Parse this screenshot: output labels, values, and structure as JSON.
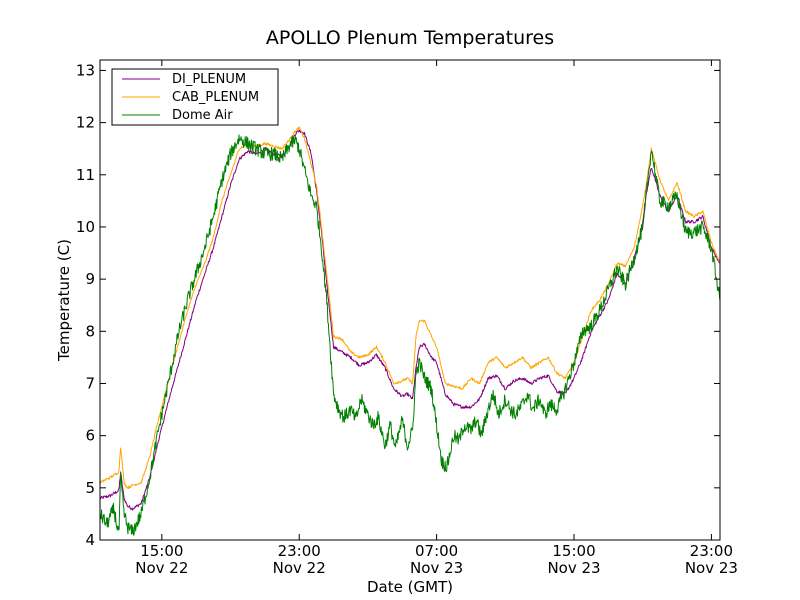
{
  "chart_data": {
    "type": "line",
    "title": "APOLLO Plenum Temperatures",
    "xlabel": "Date (GMT)",
    "ylabel": "Temperature (C)",
    "x_unit": "hours since Nov 22 00:00 GMT",
    "xlim": [
      11.4,
      47.5
    ],
    "ylim": [
      4,
      13.2
    ],
    "yticks": [
      4,
      5,
      6,
      7,
      8,
      9,
      10,
      11,
      12,
      13
    ],
    "xticks": [
      {
        "x": 15,
        "time": "15:00",
        "date": "Nov 22"
      },
      {
        "x": 23,
        "time": "23:00",
        "date": "Nov 22"
      },
      {
        "x": 31,
        "time": "07:00",
        "date": "Nov 23"
      },
      {
        "x": 39,
        "time": "15:00",
        "date": "Nov 23"
      },
      {
        "x": 47,
        "time": "23:00",
        "date": "Nov 23"
      }
    ],
    "legend_position": "top-left",
    "series": [
      {
        "name": "DI_PLENUM",
        "color": "#800080",
        "x": [
          11.4,
          12.0,
          12.5,
          12.6,
          12.8,
          13.0,
          13.3,
          13.8,
          14.3,
          14.8,
          15.5,
          16.0,
          16.5,
          17.0,
          17.5,
          18.0,
          18.5,
          19.0,
          19.5,
          20.0,
          20.5,
          21.0,
          21.5,
          22.0,
          22.5,
          22.8,
          23.0,
          23.3,
          23.7,
          24.0,
          24.3,
          24.6,
          25.0,
          25.5,
          26.0,
          26.5,
          27.0,
          27.5,
          28.0,
          28.5,
          29.0,
          29.3,
          29.6,
          29.8,
          30.0,
          30.3,
          30.7,
          31.0,
          31.5,
          32.0,
          32.5,
          33.0,
          33.5,
          34.0,
          34.5,
          35.0,
          35.5,
          36.0,
          36.5,
          37.0,
          37.5,
          38.0,
          38.5,
          39.0,
          39.5,
          40.0,
          40.5,
          41.0,
          41.5,
          42.0,
          42.5,
          43.0,
          43.2,
          43.5,
          44.0,
          44.5,
          45.0,
          45.5,
          46.0,
          46.5,
          47.0,
          47.5
        ],
        "values": [
          4.8,
          4.85,
          4.95,
          5.3,
          4.8,
          4.65,
          4.6,
          4.7,
          5.2,
          5.9,
          6.8,
          7.4,
          8.0,
          8.6,
          9.1,
          9.6,
          10.2,
          10.8,
          11.3,
          11.45,
          11.4,
          11.5,
          11.4,
          11.35,
          11.6,
          11.8,
          11.85,
          11.8,
          11.4,
          10.7,
          9.9,
          8.9,
          7.7,
          7.6,
          7.5,
          7.35,
          7.4,
          7.55,
          7.3,
          6.9,
          6.75,
          6.8,
          6.7,
          7.3,
          7.7,
          7.75,
          7.5,
          7.4,
          6.8,
          6.6,
          6.55,
          6.55,
          6.7,
          7.1,
          7.15,
          6.9,
          7.05,
          7.1,
          7.0,
          7.1,
          7.15,
          6.85,
          6.8,
          7.1,
          7.5,
          8.0,
          8.3,
          8.6,
          9.1,
          8.9,
          9.4,
          10.0,
          10.6,
          11.15,
          10.6,
          10.3,
          10.6,
          10.1,
          10.1,
          10.2,
          9.6,
          9.3
        ]
      },
      {
        "name": "CAB_PLENUM",
        "color": "#FFA500",
        "x": [
          11.4,
          12.0,
          12.5,
          12.6,
          12.8,
          13.0,
          13.3,
          13.8,
          14.3,
          14.8,
          15.5,
          16.0,
          16.5,
          17.0,
          17.5,
          18.0,
          18.5,
          19.0,
          19.5,
          20.0,
          20.5,
          21.0,
          21.5,
          22.0,
          22.5,
          22.8,
          23.0,
          23.3,
          23.7,
          24.0,
          24.3,
          24.6,
          25.0,
          25.5,
          26.0,
          26.5,
          27.0,
          27.5,
          28.0,
          28.5,
          29.0,
          29.3,
          29.6,
          29.8,
          30.0,
          30.3,
          30.7,
          31.0,
          31.5,
          32.0,
          32.5,
          33.0,
          33.5,
          34.0,
          34.5,
          35.0,
          35.5,
          36.0,
          36.5,
          37.0,
          37.5,
          38.0,
          38.5,
          39.0,
          39.5,
          40.0,
          40.5,
          41.0,
          41.5,
          42.0,
          42.5,
          43.0,
          43.2,
          43.5,
          44.0,
          44.5,
          45.0,
          45.5,
          46.0,
          46.5,
          47.0,
          47.5
        ],
        "values": [
          5.1,
          5.2,
          5.3,
          5.8,
          5.1,
          5.0,
          5.05,
          5.1,
          5.6,
          6.3,
          7.2,
          7.8,
          8.4,
          8.9,
          9.3,
          9.8,
          10.5,
          11.0,
          11.5,
          11.6,
          11.55,
          11.6,
          11.55,
          11.5,
          11.7,
          11.85,
          11.9,
          11.7,
          11.2,
          10.8,
          10.0,
          9.1,
          7.9,
          7.85,
          7.6,
          7.5,
          7.55,
          7.7,
          7.4,
          7.0,
          7.05,
          7.1,
          7.0,
          7.9,
          8.2,
          8.2,
          7.9,
          7.7,
          7.0,
          6.95,
          6.9,
          7.1,
          7.0,
          7.4,
          7.5,
          7.3,
          7.4,
          7.5,
          7.3,
          7.4,
          7.5,
          7.2,
          7.1,
          7.4,
          7.9,
          8.4,
          8.6,
          8.9,
          9.3,
          9.25,
          9.6,
          10.4,
          10.8,
          11.5,
          10.9,
          10.5,
          10.85,
          10.3,
          10.2,
          10.3,
          9.7,
          9.3
        ]
      },
      {
        "name": "Dome Air",
        "color": "#008000",
        "x": [
          11.4,
          11.8,
          12.2,
          12.5,
          12.6,
          12.8,
          13.0,
          13.3,
          13.8,
          14.3,
          14.8,
          15.5,
          16.0,
          16.5,
          17.0,
          17.5,
          18.0,
          18.5,
          19.0,
          19.5,
          20.0,
          20.5,
          21.0,
          21.5,
          22.0,
          22.5,
          22.8,
          23.0,
          23.3,
          23.7,
          24.0,
          24.3,
          24.6,
          25.0,
          25.3,
          25.6,
          26.0,
          26.3,
          26.6,
          27.0,
          27.3,
          27.6,
          28.0,
          28.3,
          28.6,
          29.0,
          29.3,
          29.6,
          29.8,
          30.0,
          30.3,
          30.7,
          31.0,
          31.3,
          31.6,
          32.0,
          32.3,
          32.6,
          33.0,
          33.3,
          33.6,
          34.0,
          34.3,
          34.6,
          35.0,
          35.3,
          35.6,
          36.0,
          36.3,
          36.6,
          37.0,
          37.3,
          37.6,
          38.0,
          38.5,
          39.0,
          39.5,
          40.0,
          40.5,
          41.0,
          41.5,
          42.0,
          42.5,
          43.0,
          43.2,
          43.5,
          44.0,
          44.5,
          45.0,
          45.5,
          46.0,
          46.5,
          47.0,
          47.5
        ],
        "values": [
          4.5,
          4.3,
          4.6,
          4.1,
          5.2,
          4.5,
          4.25,
          4.15,
          4.5,
          5.2,
          6.1,
          7.2,
          8.0,
          8.6,
          9.1,
          9.6,
          10.2,
          10.9,
          11.4,
          11.7,
          11.6,
          11.5,
          11.4,
          11.4,
          11.3,
          11.6,
          11.65,
          11.5,
          11.1,
          10.6,
          10.4,
          9.6,
          8.6,
          6.8,
          6.5,
          6.35,
          6.5,
          6.3,
          6.7,
          6.4,
          6.2,
          6.35,
          5.8,
          6.2,
          5.75,
          6.3,
          5.8,
          6.1,
          7.2,
          7.4,
          7.1,
          6.9,
          6.2,
          5.5,
          5.4,
          6.0,
          5.9,
          6.2,
          6.1,
          6.3,
          6.0,
          6.5,
          6.8,
          6.4,
          6.7,
          6.5,
          6.4,
          6.6,
          6.8,
          6.5,
          6.7,
          6.4,
          6.6,
          6.5,
          6.9,
          7.4,
          8.0,
          8.1,
          8.4,
          8.8,
          9.2,
          8.9,
          9.4,
          10.0,
          10.6,
          11.5,
          10.5,
          10.4,
          10.6,
          9.9,
          9.9,
          10.0,
          9.6,
          8.6
        ]
      }
    ]
  }
}
